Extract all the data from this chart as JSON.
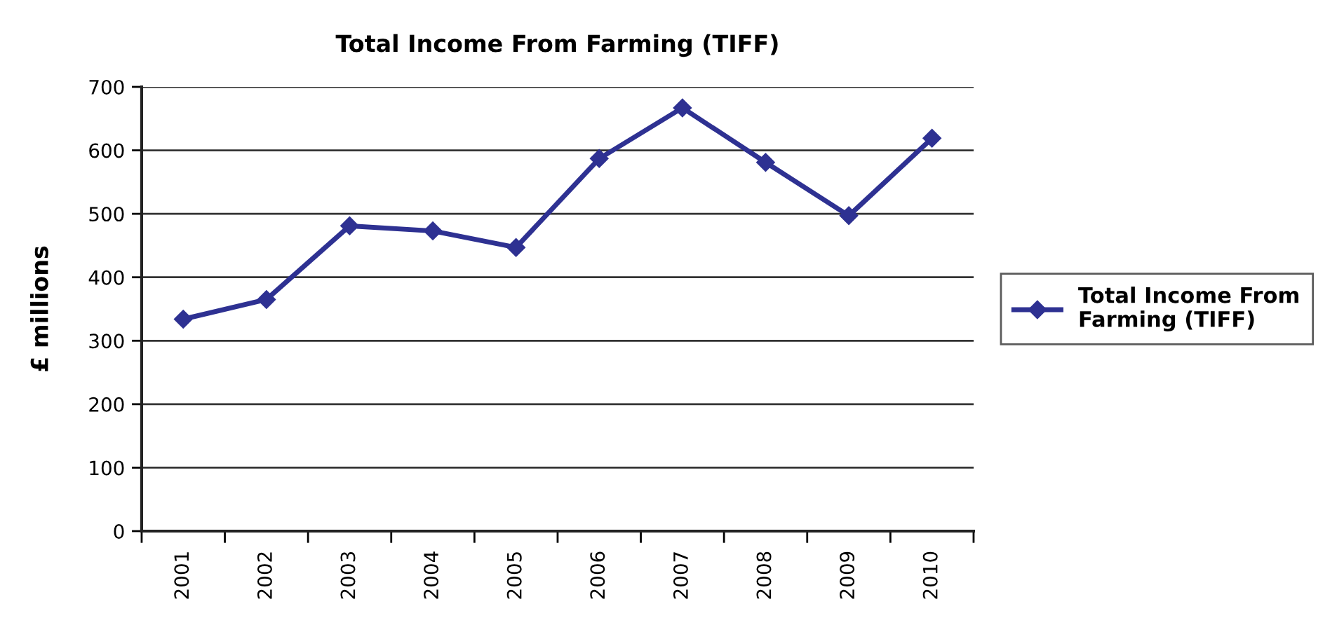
{
  "chart_data": {
    "type": "line",
    "title": "Total Income From Farming (TIFF)",
    "ylabel": "£ millions",
    "categories": [
      "2001",
      "2002",
      "2003",
      "2004",
      "2005",
      "2006",
      "2007",
      "2008",
      "2009",
      "2010"
    ],
    "series": [
      {
        "name": "Total Income From Farming (TIFF)",
        "color": "#2e3192",
        "values": [
          334,
          365,
          481,
          473,
          447,
          587,
          667,
          581,
          497,
          619
        ]
      }
    ],
    "ylim": [
      0,
      700
    ],
    "yticks": [
      0,
      100,
      200,
      300,
      400,
      500,
      600,
      700
    ],
    "grid": "y",
    "legend": "right",
    "marker": "diamond",
    "line_style": "solid"
  }
}
